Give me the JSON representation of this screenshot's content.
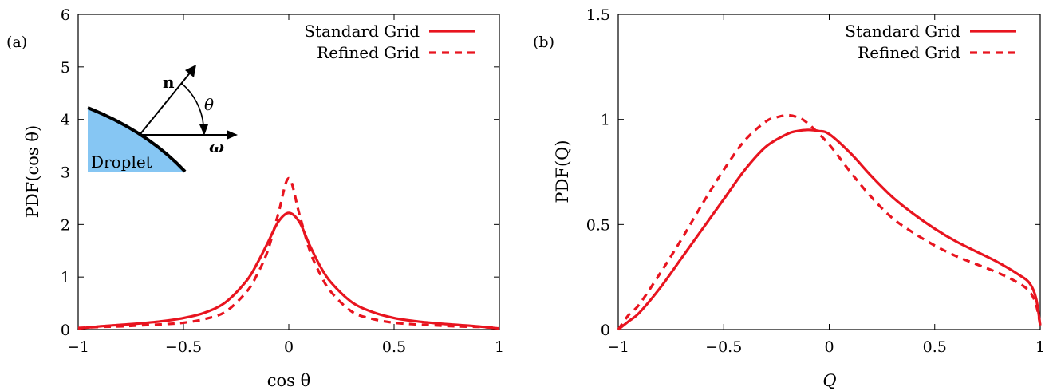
{
  "colors": {
    "series": "#e8141f",
    "droplet_fill": "#86c6f3",
    "axis": "#000000"
  },
  "chart_data": [
    {
      "panel": "(a)",
      "type": "line",
      "xlabel": "cos θ",
      "ylabel": "PDF(cos θ)",
      "xlim": [
        -1,
        1
      ],
      "ylim": [
        0,
        6
      ],
      "xticks": [
        -1,
        -0.5,
        0,
        0.5,
        1
      ],
      "xtick_labels": [
        "−1",
        "−0.5",
        "0",
        "0.5",
        "1"
      ],
      "yticks": [
        0,
        1,
        2,
        3,
        4,
        5,
        6
      ],
      "ytick_labels": [
        "0",
        "1",
        "2",
        "3",
        "4",
        "5",
        "6"
      ],
      "grid": false,
      "legend": "top-right",
      "inset": {
        "droplet_label": "Droplet",
        "normal_label": "n",
        "angle_label": "θ",
        "vorticity_label": "ω"
      },
      "series": [
        {
          "name": "Standard Grid",
          "style": "solid",
          "x": [
            -1,
            -0.9,
            -0.8,
            -0.7,
            -0.6,
            -0.5,
            -0.4,
            -0.3,
            -0.2,
            -0.15,
            -0.1,
            -0.05,
            0,
            0.05,
            0.1,
            0.15,
            0.2,
            0.3,
            0.4,
            0.5,
            0.6,
            0.7,
            0.8,
            0.9,
            1
          ],
          "y": [
            0.02,
            0.06,
            0.09,
            0.12,
            0.16,
            0.22,
            0.32,
            0.52,
            0.93,
            1.26,
            1.65,
            2.05,
            2.22,
            2.05,
            1.6,
            1.2,
            0.9,
            0.52,
            0.33,
            0.22,
            0.16,
            0.12,
            0.09,
            0.06,
            0.02
          ]
        },
        {
          "name": "Refined Grid",
          "style": "dashed",
          "x": [
            -1,
            -0.9,
            -0.8,
            -0.7,
            -0.6,
            -0.5,
            -0.4,
            -0.3,
            -0.2,
            -0.15,
            -0.1,
            -0.05,
            0,
            0.05,
            0.1,
            0.15,
            0.2,
            0.3,
            0.4,
            0.5,
            0.6,
            0.7,
            0.8,
            0.9,
            1
          ],
          "y": [
            0.03,
            0.05,
            0.06,
            0.08,
            0.1,
            0.13,
            0.2,
            0.34,
            0.72,
            1.05,
            1.5,
            2.2,
            2.88,
            2.2,
            1.5,
            1.05,
            0.72,
            0.34,
            0.2,
            0.13,
            0.1,
            0.08,
            0.06,
            0.05,
            0.03
          ]
        }
      ]
    },
    {
      "panel": "(b)",
      "type": "line",
      "xlabel": "Q",
      "ylabel": "PDF(Q)",
      "xlim": [
        -1,
        1
      ],
      "ylim": [
        0,
        1.5
      ],
      "xticks": [
        -1,
        -0.5,
        0,
        0.5,
        1
      ],
      "xtick_labels": [
        "−1",
        "−0.5",
        "0",
        "0.5",
        "1"
      ],
      "yticks": [
        0,
        0.5,
        1,
        1.5
      ],
      "ytick_labels": [
        "0",
        "0.5",
        "1",
        "1.5"
      ],
      "grid": false,
      "legend": "top-right",
      "series": [
        {
          "name": "Standard Grid",
          "style": "solid",
          "x": [
            -1,
            -0.95,
            -0.9,
            -0.8,
            -0.7,
            -0.6,
            -0.5,
            -0.4,
            -0.3,
            -0.2,
            -0.15,
            -0.1,
            -0.05,
            0,
            0.1,
            0.2,
            0.3,
            0.4,
            0.5,
            0.6,
            0.7,
            0.8,
            0.9,
            0.95,
            0.98,
            1
          ],
          "y": [
            0,
            0.04,
            0.08,
            0.2,
            0.34,
            0.48,
            0.62,
            0.76,
            0.87,
            0.93,
            0.945,
            0.95,
            0.945,
            0.93,
            0.84,
            0.73,
            0.63,
            0.55,
            0.48,
            0.42,
            0.37,
            0.32,
            0.26,
            0.22,
            0.15,
            0.02
          ]
        },
        {
          "name": "Refined Grid",
          "style": "dashed",
          "x": [
            -1,
            -0.95,
            -0.9,
            -0.8,
            -0.7,
            -0.6,
            -0.5,
            -0.4,
            -0.3,
            -0.25,
            -0.2,
            -0.15,
            -0.1,
            0,
            0.1,
            0.2,
            0.3,
            0.4,
            0.5,
            0.6,
            0.7,
            0.8,
            0.9,
            0.95,
            0.98,
            1
          ],
          "y": [
            0,
            0.07,
            0.12,
            0.27,
            0.43,
            0.6,
            0.76,
            0.9,
            0.99,
            1.01,
            1.02,
            1.01,
            0.98,
            0.88,
            0.75,
            0.63,
            0.53,
            0.46,
            0.4,
            0.35,
            0.31,
            0.27,
            0.22,
            0.18,
            0.12,
            0.02
          ]
        }
      ]
    }
  ]
}
